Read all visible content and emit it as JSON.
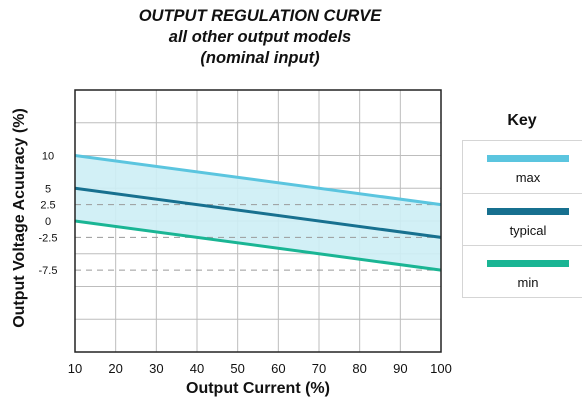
{
  "title_lines": [
    "OUTPUT REGULATION CURVE",
    "all other output models",
    "(nominal input)"
  ],
  "colors": {
    "max": "#5bc5df",
    "typical": "#17708f",
    "min": "#1ab594",
    "band": "#cdeef5",
    "grid": "#bdbdbd",
    "dash": "#9a9a9a"
  },
  "key": {
    "title": "Key",
    "items": [
      {
        "label": "max",
        "color": "#5bc5df"
      },
      {
        "label": "typical",
        "color": "#17708f"
      },
      {
        "label": "min",
        "color": "#1ab594"
      }
    ]
  },
  "chart_data": {
    "type": "line",
    "title": "OUTPUT REGULATION CURVE all other output models (nominal input)",
    "xlabel": "Output Current (%)",
    "ylabel": "Output Voltage Acuuracy (%)",
    "x": [
      10,
      100
    ],
    "xlim": [
      10,
      100
    ],
    "ylim": [
      -20,
      20
    ],
    "xticks": [
      10,
      20,
      30,
      40,
      50,
      60,
      70,
      80,
      90,
      100
    ],
    "yticks": [
      10,
      5,
      2.5,
      0,
      -2.5,
      -7.5
    ],
    "ytick_labels": [
      "10",
      "5",
      "2.5",
      "0",
      "-2.5",
      "-7.5"
    ],
    "series": [
      {
        "name": "max",
        "values": [
          10,
          2.5
        ]
      },
      {
        "name": "typical",
        "values": [
          5,
          -2.5
        ]
      },
      {
        "name": "min",
        "values": [
          0,
          -7.5
        ]
      }
    ],
    "dashed_reference_lines": [
      2.5,
      -2.5,
      -7.5
    ],
    "shaded_band": {
      "upper": "max",
      "lower": "min"
    },
    "grid": true,
    "legend": "right"
  }
}
